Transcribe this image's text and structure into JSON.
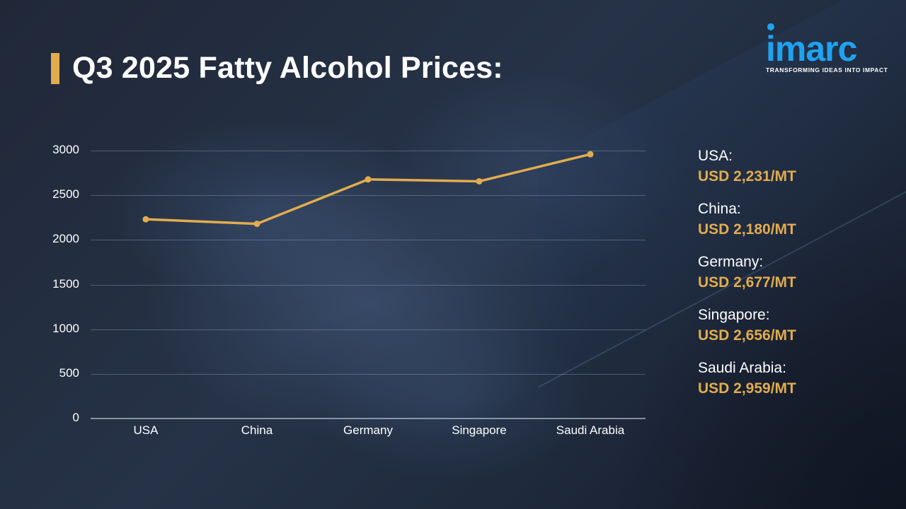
{
  "header": {
    "title": "Q3 2025 Fatty Alcohol Prices:",
    "accent_color": "#e2ac4e"
  },
  "logo": {
    "word": "imarc",
    "tagline": "TRANSFORMING IDEAS INTO IMPACT",
    "color": "#1fa3f0"
  },
  "chart_data": {
    "type": "line",
    "title": "Q3 2025 Fatty Alcohol Prices:",
    "xlabel": "",
    "ylabel": "",
    "categories": [
      "USA",
      "China",
      "Germany",
      "Singapore",
      "Saudi Arabia"
    ],
    "values": [
      2231,
      2180,
      2677,
      2656,
      2959
    ],
    "unit": "USD/MT",
    "ylim": [
      0,
      3000
    ],
    "yticks": [
      0,
      500,
      1000,
      1500,
      2000,
      2500,
      3000
    ],
    "grid": true,
    "line_color": "#e2ac4e",
    "legend_position": "none"
  },
  "legend": {
    "items": [
      {
        "country": "USA:",
        "price": "USD 2,231/MT"
      },
      {
        "country": "China:",
        "price": "USD 2,180/MT"
      },
      {
        "country": "Germany:",
        "price": "USD 2,677/MT"
      },
      {
        "country": "Singapore:",
        "price": "USD 2,656/MT"
      },
      {
        "country": "Saudi Arabia:",
        "price": "USD 2,959/MT"
      }
    ]
  }
}
